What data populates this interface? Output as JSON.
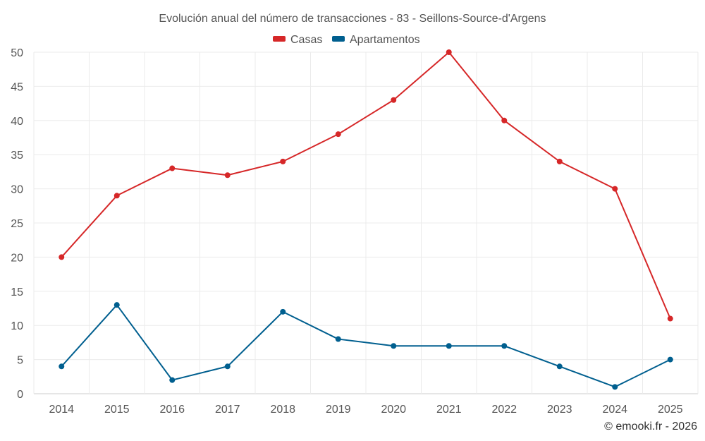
{
  "chart_data": {
    "type": "line",
    "title": "Evolución anual del número de transacciones - 83 - Seillons-Source-d'Argens",
    "categories": [
      "2014",
      "2015",
      "2016",
      "2017",
      "2018",
      "2019",
      "2020",
      "2021",
      "2022",
      "2023",
      "2024",
      "2025"
    ],
    "series": [
      {
        "name": "Casas",
        "color": "#d62728",
        "values": [
          20,
          29,
          33,
          32,
          34,
          38,
          43,
          50,
          40,
          34,
          30,
          11
        ]
      },
      {
        "name": "Apartamentos",
        "color": "#005f8f",
        "values": [
          4,
          13,
          2,
          4,
          12,
          8,
          7,
          7,
          7,
          4,
          1,
          5
        ]
      }
    ],
    "ylim": [
      0,
      50
    ],
    "yticks": [
      0,
      5,
      10,
      15,
      20,
      25,
      30,
      35,
      40,
      45,
      50
    ],
    "xlabel": "",
    "ylabel": "",
    "grid": true,
    "legend": "top-center"
  },
  "credit": "© emooki.fr - 2026"
}
